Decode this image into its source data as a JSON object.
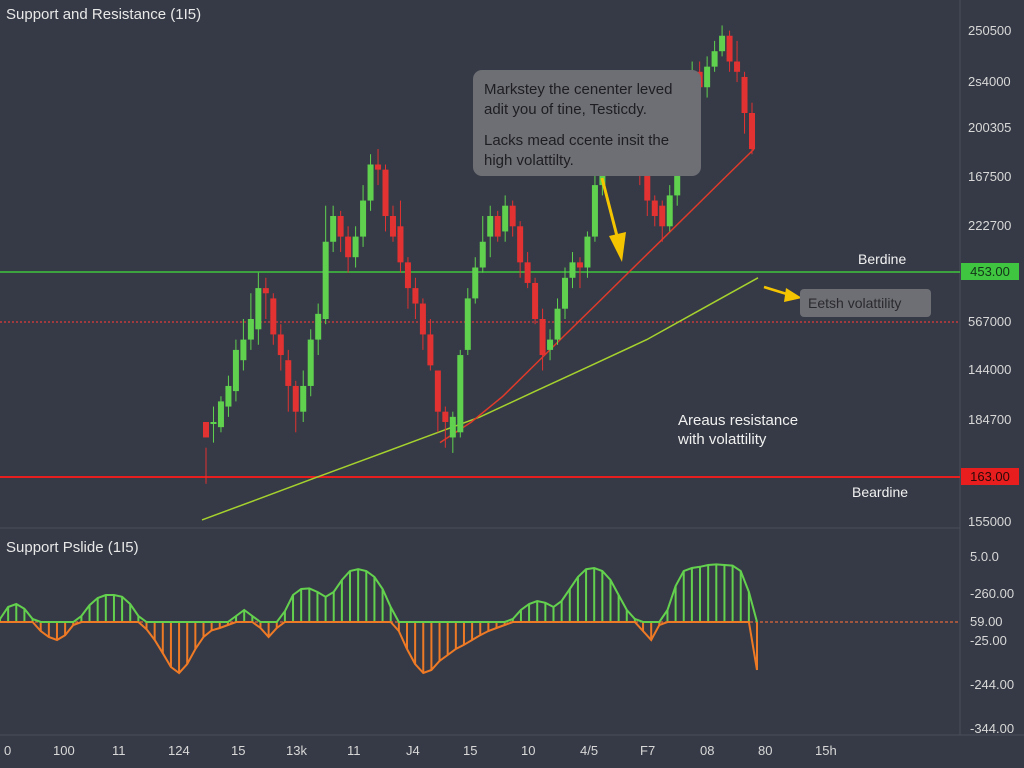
{
  "main_title": "Support and Resistance (1I5)",
  "sub_title": "Support Pslide (1I5)",
  "callout": {
    "line1": "Markstey the cenenter leved adit you of tine, Testicdy.",
    "line2": "Lacks mead ccente insit the high volattilty."
  },
  "note_box": "Eetsh volattility",
  "annotation": {
    "line1": "Areaus resistance",
    "line2": "with volattility"
  },
  "colors": {
    "background": "#363a46",
    "bullish": "#5fd14f",
    "bearish": "#e23232",
    "resistance": "#3fc53f",
    "support": "#e81e1e",
    "mid_dotted": "#e03a3a",
    "ma_fast": "#e03a2a",
    "ma_slow": "#a6d22e",
    "osc_positive": "#63d14e",
    "osc_negative": "#ef7a26",
    "arrow": "#f5c400"
  },
  "chart_data": [
    {
      "type": "candlestick",
      "title": "Support and Resistance (1I5)",
      "price_axis_ticks": [
        "250500",
        "2s4000",
        "200305",
        "167500",
        "222700",
        "567000",
        "144000",
        "184700",
        "155000"
      ],
      "price_badges": [
        {
          "label": "453.00",
          "level": "resistance"
        },
        {
          "label": "163.00",
          "level": "support"
        }
      ],
      "levels": {
        "resistance": {
          "value": 0.755,
          "label": "Berdine"
        },
        "mid": {
          "value": 0.65
        },
        "support": {
          "value": 0.155,
          "label": "Beardine"
        }
      },
      "ylim": [
        0,
        1
      ],
      "candles": [
        [
          0.17,
          0.2,
          0.15,
          0.08,
          "bear"
        ],
        [
          0.2,
          0.2,
          0.23,
          0.16,
          "bull"
        ],
        [
          0.19,
          0.24,
          0.25,
          0.18,
          "bull"
        ],
        [
          0.23,
          0.27,
          0.29,
          0.21,
          "bull"
        ],
        [
          0.26,
          0.34,
          0.36,
          0.24,
          "bull"
        ],
        [
          0.32,
          0.36,
          0.4,
          0.3,
          "bull"
        ],
        [
          0.36,
          0.4,
          0.45,
          0.34,
          "bull"
        ],
        [
          0.38,
          0.46,
          0.49,
          0.35,
          "bull"
        ],
        [
          0.46,
          0.45,
          0.48,
          0.4,
          "bear"
        ],
        [
          0.44,
          0.37,
          0.45,
          0.35,
          "bear"
        ],
        [
          0.37,
          0.33,
          0.39,
          0.3,
          "bear"
        ],
        [
          0.32,
          0.27,
          0.34,
          0.22,
          "bear"
        ],
        [
          0.27,
          0.22,
          0.28,
          0.18,
          "bear"
        ],
        [
          0.22,
          0.27,
          0.3,
          0.2,
          "bull"
        ],
        [
          0.27,
          0.36,
          0.38,
          0.25,
          "bull"
        ],
        [
          0.36,
          0.41,
          0.43,
          0.33,
          "bull"
        ],
        [
          0.4,
          0.55,
          0.62,
          0.39,
          "bull"
        ],
        [
          0.55,
          0.6,
          0.62,
          0.53,
          "bull"
        ],
        [
          0.6,
          0.56,
          0.61,
          0.53,
          "bear"
        ],
        [
          0.56,
          0.52,
          0.58,
          0.49,
          "bear"
        ],
        [
          0.52,
          0.56,
          0.58,
          0.5,
          "bull"
        ],
        [
          0.56,
          0.63,
          0.66,
          0.54,
          "bull"
        ],
        [
          0.63,
          0.7,
          0.72,
          0.61,
          "bull"
        ],
        [
          0.7,
          0.69,
          0.73,
          0.66,
          "bear"
        ],
        [
          0.69,
          0.6,
          0.7,
          0.57,
          "bear"
        ],
        [
          0.6,
          0.56,
          0.62,
          0.55,
          "bear"
        ],
        [
          0.58,
          0.51,
          0.63,
          0.49,
          "bear"
        ],
        [
          0.51,
          0.46,
          0.52,
          0.42,
          "bear"
        ],
        [
          0.46,
          0.43,
          0.48,
          0.4,
          "bear"
        ],
        [
          0.43,
          0.37,
          0.44,
          0.34,
          "bear"
        ],
        [
          0.37,
          0.31,
          0.4,
          0.3,
          "bear"
        ],
        [
          0.3,
          0.22,
          0.3,
          0.18,
          "bear"
        ],
        [
          0.22,
          0.2,
          0.23,
          0.15,
          "bear"
        ],
        [
          0.17,
          0.21,
          0.22,
          0.14,
          "bull"
        ],
        [
          0.18,
          0.33,
          0.34,
          0.17,
          "bull"
        ],
        [
          0.34,
          0.44,
          0.46,
          0.33,
          "bull"
        ],
        [
          0.44,
          0.5,
          0.52,
          0.43,
          "bull"
        ],
        [
          0.5,
          0.55,
          0.6,
          0.49,
          "bull"
        ],
        [
          0.56,
          0.6,
          0.62,
          0.52,
          "bull"
        ],
        [
          0.6,
          0.56,
          0.61,
          0.55,
          "bear"
        ],
        [
          0.57,
          0.62,
          0.64,
          0.55,
          "bull"
        ],
        [
          0.62,
          0.58,
          0.63,
          0.56,
          "bear"
        ],
        [
          0.58,
          0.51,
          0.59,
          0.48,
          "bear"
        ],
        [
          0.51,
          0.47,
          0.53,
          0.46,
          "bear"
        ],
        [
          0.47,
          0.4,
          0.48,
          0.39,
          "bear"
        ],
        [
          0.4,
          0.33,
          0.42,
          0.3,
          "bear"
        ],
        [
          0.34,
          0.36,
          0.38,
          0.32,
          "bull"
        ],
        [
          0.36,
          0.42,
          0.44,
          0.35,
          "bull"
        ],
        [
          0.42,
          0.48,
          0.5,
          0.4,
          "bull"
        ],
        [
          0.48,
          0.51,
          0.53,
          0.46,
          "bull"
        ],
        [
          0.51,
          0.5,
          0.52,
          0.46,
          "bear"
        ],
        [
          0.5,
          0.56,
          0.57,
          0.48,
          "bull"
        ],
        [
          0.56,
          0.66,
          0.68,
          0.55,
          "bull"
        ],
        [
          0.66,
          0.72,
          0.75,
          0.64,
          "bull"
        ],
        [
          0.72,
          0.8,
          0.82,
          0.7,
          "bull"
        ],
        [
          0.8,
          0.73,
          0.81,
          0.7,
          "bear"
        ],
        [
          0.74,
          0.81,
          0.82,
          0.72,
          "bull"
        ],
        [
          0.81,
          0.76,
          0.84,
          0.73,
          "bear"
        ],
        [
          0.76,
          0.69,
          0.78,
          0.66,
          "bear"
        ],
        [
          0.69,
          0.63,
          0.71,
          0.6,
          "bear"
        ],
        [
          0.63,
          0.6,
          0.64,
          0.58,
          "bear"
        ],
        [
          0.62,
          0.58,
          0.63,
          0.55,
          "bear"
        ],
        [
          0.58,
          0.64,
          0.66,
          0.57,
          "bull"
        ],
        [
          0.64,
          0.74,
          0.77,
          0.62,
          "bull"
        ],
        [
          0.74,
          0.84,
          0.86,
          0.72,
          "bull"
        ],
        [
          0.84,
          0.88,
          0.9,
          0.82,
          "bull"
        ],
        [
          0.88,
          0.85,
          0.9,
          0.82,
          "bear"
        ],
        [
          0.85,
          0.89,
          0.91,
          0.83,
          "bull"
        ],
        [
          0.89,
          0.92,
          0.94,
          0.88,
          "bull"
        ],
        [
          0.92,
          0.95,
          0.97,
          0.91,
          "bull"
        ],
        [
          0.95,
          0.9,
          0.96,
          0.88,
          "bear"
        ],
        [
          0.9,
          0.88,
          0.94,
          0.86,
          "bear"
        ],
        [
          0.87,
          0.8,
          0.88,
          0.76,
          "bear"
        ],
        [
          0.8,
          0.73,
          0.82,
          0.72,
          "bear"
        ]
      ],
      "ma_fast": [
        0.16,
        0.2,
        0.25,
        0.31,
        0.37,
        0.43,
        0.49,
        0.55,
        0.61,
        0.67,
        0.73
      ],
      "ma_slow": [
        0.01,
        0.05,
        0.09,
        0.13,
        0.17,
        0.21,
        0.26,
        0.31,
        0.36,
        0.42,
        0.48
      ],
      "x_ticks": [
        "0",
        "100",
        "11",
        "124",
        "15",
        "13k",
        "11",
        "J4",
        "15",
        "10",
        "4/5",
        "F7",
        "08",
        "80",
        "15h"
      ]
    },
    {
      "type": "bar",
      "title": "Support Pslide (1I5)",
      "axis_ticks": [
        "5.0.0",
        "-260.00",
        "-25.00",
        "-244.00",
        "-344.00"
      ],
      "zero_badge": "59.00",
      "ylim": [
        -1,
        1
      ],
      "values": [
        0.05,
        0.25,
        0.3,
        0.22,
        0.05,
        -0.15,
        -0.25,
        -0.3,
        -0.22,
        -0.05,
        0.1,
        0.28,
        0.4,
        0.45,
        0.45,
        0.42,
        0.3,
        0.1,
        -0.12,
        -0.3,
        -0.52,
        -0.75,
        -0.85,
        -0.7,
        -0.45,
        -0.25,
        -0.14,
        -0.1,
        -0.05,
        0.1,
        0.2,
        0.1,
        -0.1,
        -0.25,
        -0.1,
        0.18,
        0.45,
        0.55,
        0.56,
        0.5,
        0.42,
        0.5,
        0.7,
        0.85,
        0.88,
        0.85,
        0.75,
        0.55,
        0.25,
        -0.15,
        -0.45,
        -0.7,
        -0.85,
        -0.8,
        -0.65,
        -0.55,
        -0.45,
        -0.38,
        -0.3,
        -0.22,
        -0.15,
        -0.1,
        -0.05,
        0.05,
        0.2,
        0.3,
        0.35,
        0.32,
        0.25,
        0.35,
        0.55,
        0.75,
        0.88,
        0.9,
        0.85,
        0.7,
        0.45,
        0.2,
        0.05,
        -0.15,
        -0.3,
        -0.05,
        0.2,
        0.6,
        0.85,
        0.9,
        0.92,
        0.95,
        0.96,
        0.95,
        0.94,
        0.85,
        0.5,
        -0.8
      ]
    }
  ]
}
